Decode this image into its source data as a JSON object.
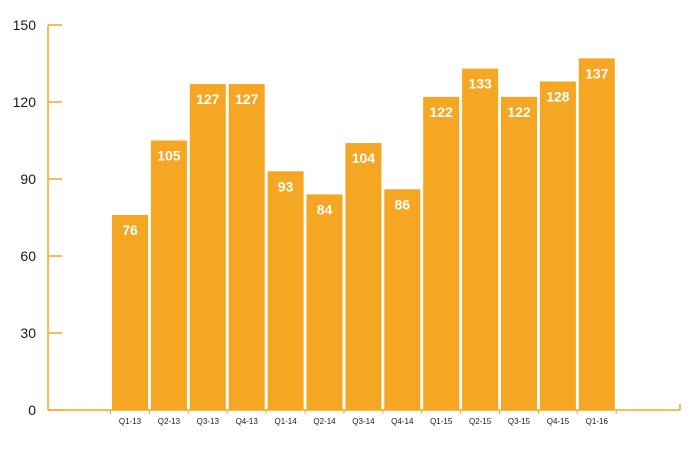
{
  "chart_data": {
    "type": "bar",
    "categories": [
      "Q1-13",
      "Q2-13",
      "Q3-13",
      "Q4-13",
      "Q1-14",
      "Q2-14",
      "Q3-14",
      "Q4-14",
      "Q1-15",
      "Q2-15",
      "Q3-15",
      "Q4-15",
      "Q1-16"
    ],
    "values": [
      76,
      105,
      127,
      127,
      93,
      84,
      104,
      86,
      122,
      133,
      122,
      128,
      137
    ],
    "y_ticks": [
      "0",
      "30",
      "60",
      "90",
      "120",
      "150"
    ],
    "ylim": [
      0,
      150
    ],
    "title": "",
    "xlabel": "",
    "ylabel": "",
    "grid": false,
    "legend": "none",
    "colors": {
      "bar": "#F5A623",
      "axis": "#F5A623",
      "text": "#1a1a1a",
      "label": "#ffffff"
    }
  }
}
